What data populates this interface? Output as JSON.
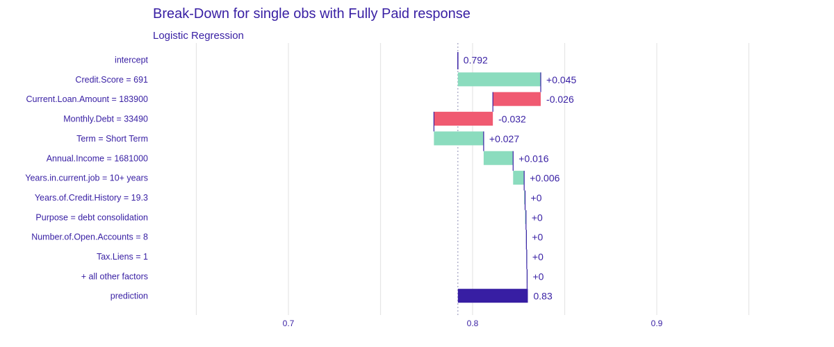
{
  "chart_data": {
    "type": "waterfall",
    "title": "Break-Down for single obs with Fully Paid response",
    "subtitle": "Logistic Regression",
    "x_ticks": [
      0.7,
      0.8,
      0.9
    ],
    "x_tick_labels": [
      "0.7",
      "0.8",
      "0.9"
    ],
    "xlim": [
      0.6,
      1.0
    ],
    "grid": true,
    "intercept_value": 0.792,
    "rows": [
      {
        "label": "intercept",
        "start": 0.792,
        "end": 0.792,
        "kind": "intercept",
        "value_label": "0.792"
      },
      {
        "label": "Credit.Score = 691",
        "start": 0.792,
        "end": 0.837,
        "kind": "positive",
        "value_label": "+0.045"
      },
      {
        "label": "Current.Loan.Amount = 183900",
        "start": 0.837,
        "end": 0.811,
        "kind": "negative",
        "value_label": "-0.026"
      },
      {
        "label": "Monthly.Debt = 33490",
        "start": 0.811,
        "end": 0.779,
        "kind": "negative",
        "value_label": "-0.032"
      },
      {
        "label": "Term = Short Term",
        "start": 0.779,
        "end": 0.806,
        "kind": "positive",
        "value_label": "+0.027"
      },
      {
        "label": "Annual.Income = 1681000",
        "start": 0.806,
        "end": 0.822,
        "kind": "positive",
        "value_label": "+0.016"
      },
      {
        "label": "Years.in.current.job = 10+ years",
        "start": 0.822,
        "end": 0.828,
        "kind": "positive",
        "value_label": "+0.006"
      },
      {
        "label": "Years.of.Credit.History = 19.3",
        "start": 0.828,
        "end": 0.8285,
        "kind": "positive",
        "value_label": "+0"
      },
      {
        "label": "Purpose = debt consolidation",
        "start": 0.8285,
        "end": 0.829,
        "kind": "positive",
        "value_label": "+0"
      },
      {
        "label": "Number.of.Open.Accounts = 8",
        "start": 0.829,
        "end": 0.8292,
        "kind": "positive",
        "value_label": "+0"
      },
      {
        "label": "Tax.Liens = 1",
        "start": 0.8292,
        "end": 0.8294,
        "kind": "positive",
        "value_label": "+0"
      },
      {
        "label": "+ all other factors",
        "start": 0.8294,
        "end": 0.8296,
        "kind": "positive",
        "value_label": "+0"
      },
      {
        "label": "prediction",
        "start": 0.792,
        "end": 0.83,
        "kind": "prediction",
        "value_label": "0.83"
      }
    ],
    "colors": {
      "text": "#371ea3",
      "positive": "#8bdcbe",
      "negative": "#f05a71",
      "prediction": "#371ea3",
      "connector": "#371ea3",
      "grid": "#e6e6e6",
      "intercept_line": "#a0a0c0"
    }
  }
}
